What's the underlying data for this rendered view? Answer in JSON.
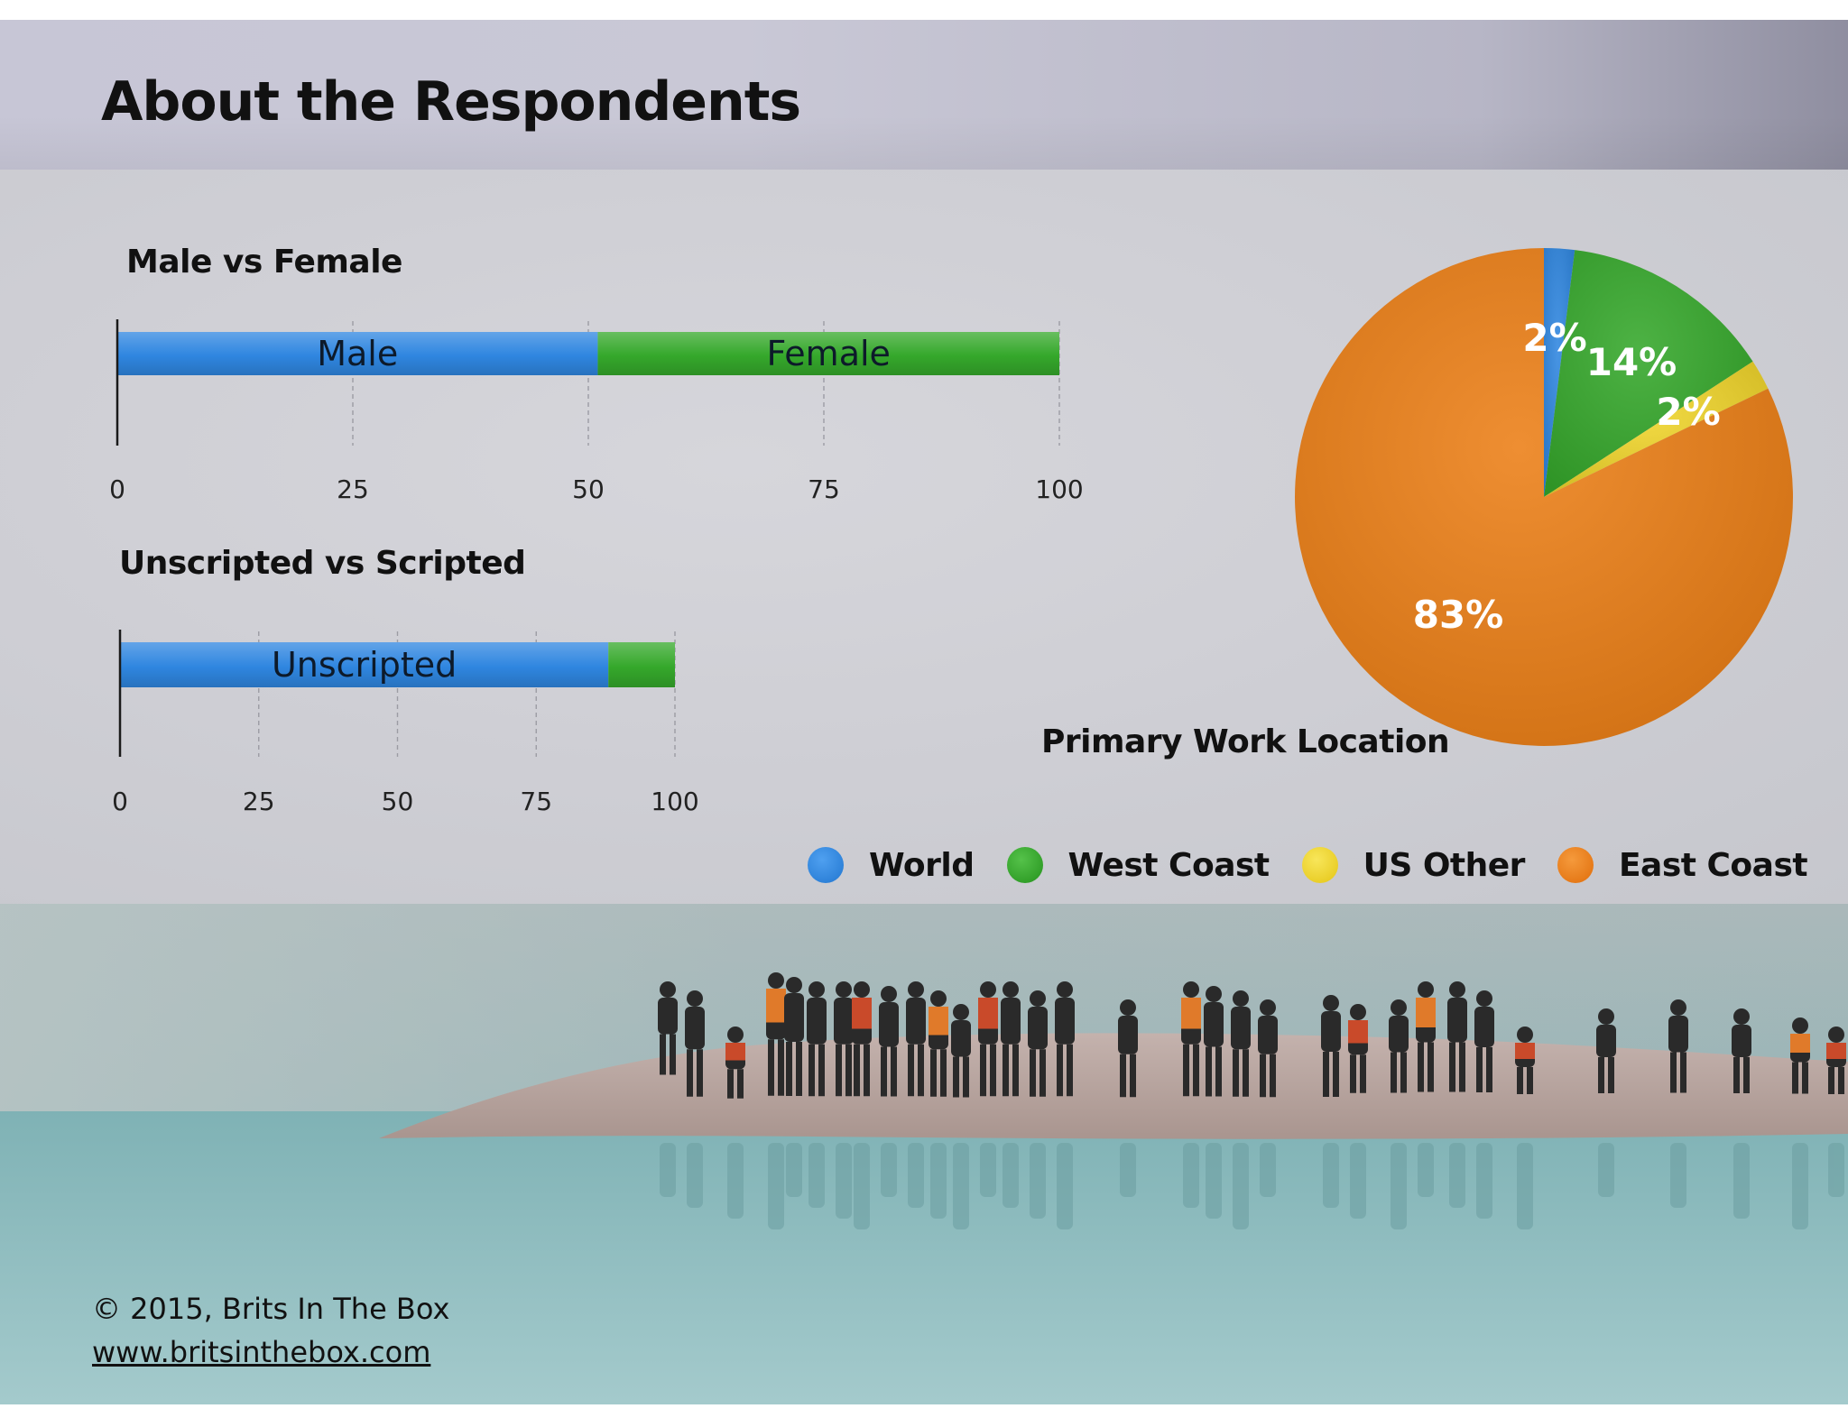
{
  "page": {
    "title": "About the Respondents"
  },
  "colors": {
    "blue": "#2f86e0",
    "green": "#35a82b",
    "yellow": "#f0d52a",
    "orange": "#ec7f16"
  },
  "chart_data": [
    {
      "type": "bar",
      "orientation": "horizontal-stacked",
      "title": "Male vs Female",
      "series": [
        {
          "name": "Male",
          "value": 51,
          "color": "#2f86e0"
        },
        {
          "name": "Female",
          "value": 49,
          "color": "#35a82b"
        }
      ],
      "xlim": [
        0,
        100
      ],
      "ticks": [
        "0",
        "25",
        "50",
        "75",
        "100"
      ],
      "grid": true
    },
    {
      "type": "bar",
      "orientation": "horizontal-stacked",
      "title": "Unscripted vs Scripted",
      "series": [
        {
          "name": "Unscripted",
          "value": 88,
          "color": "#2f86e0"
        },
        {
          "name": "",
          "value": 12,
          "color": "#35a82b"
        }
      ],
      "xlim": [
        0,
        100
      ],
      "ticks": [
        "0",
        "25",
        "50",
        "75",
        "100"
      ],
      "grid": true
    },
    {
      "type": "pie",
      "title": "Primary Work Location",
      "slices": [
        {
          "name": "World",
          "value": 2,
          "label": "2%",
          "color": "#2f86e0"
        },
        {
          "name": "West Coast",
          "value": 14,
          "label": "14%",
          "color": "#35a82b"
        },
        {
          "name": "US Other",
          "value": 2,
          "label": "2%",
          "color": "#f0d52a"
        },
        {
          "name": "East Coast",
          "value": 83,
          "label": "83%",
          "color": "#ec7f16"
        }
      ],
      "legend_placement": "bottom"
    }
  ],
  "footer": {
    "copyright": "© 2015, Brits In The Box",
    "url": "www.britsinthebox.com"
  }
}
